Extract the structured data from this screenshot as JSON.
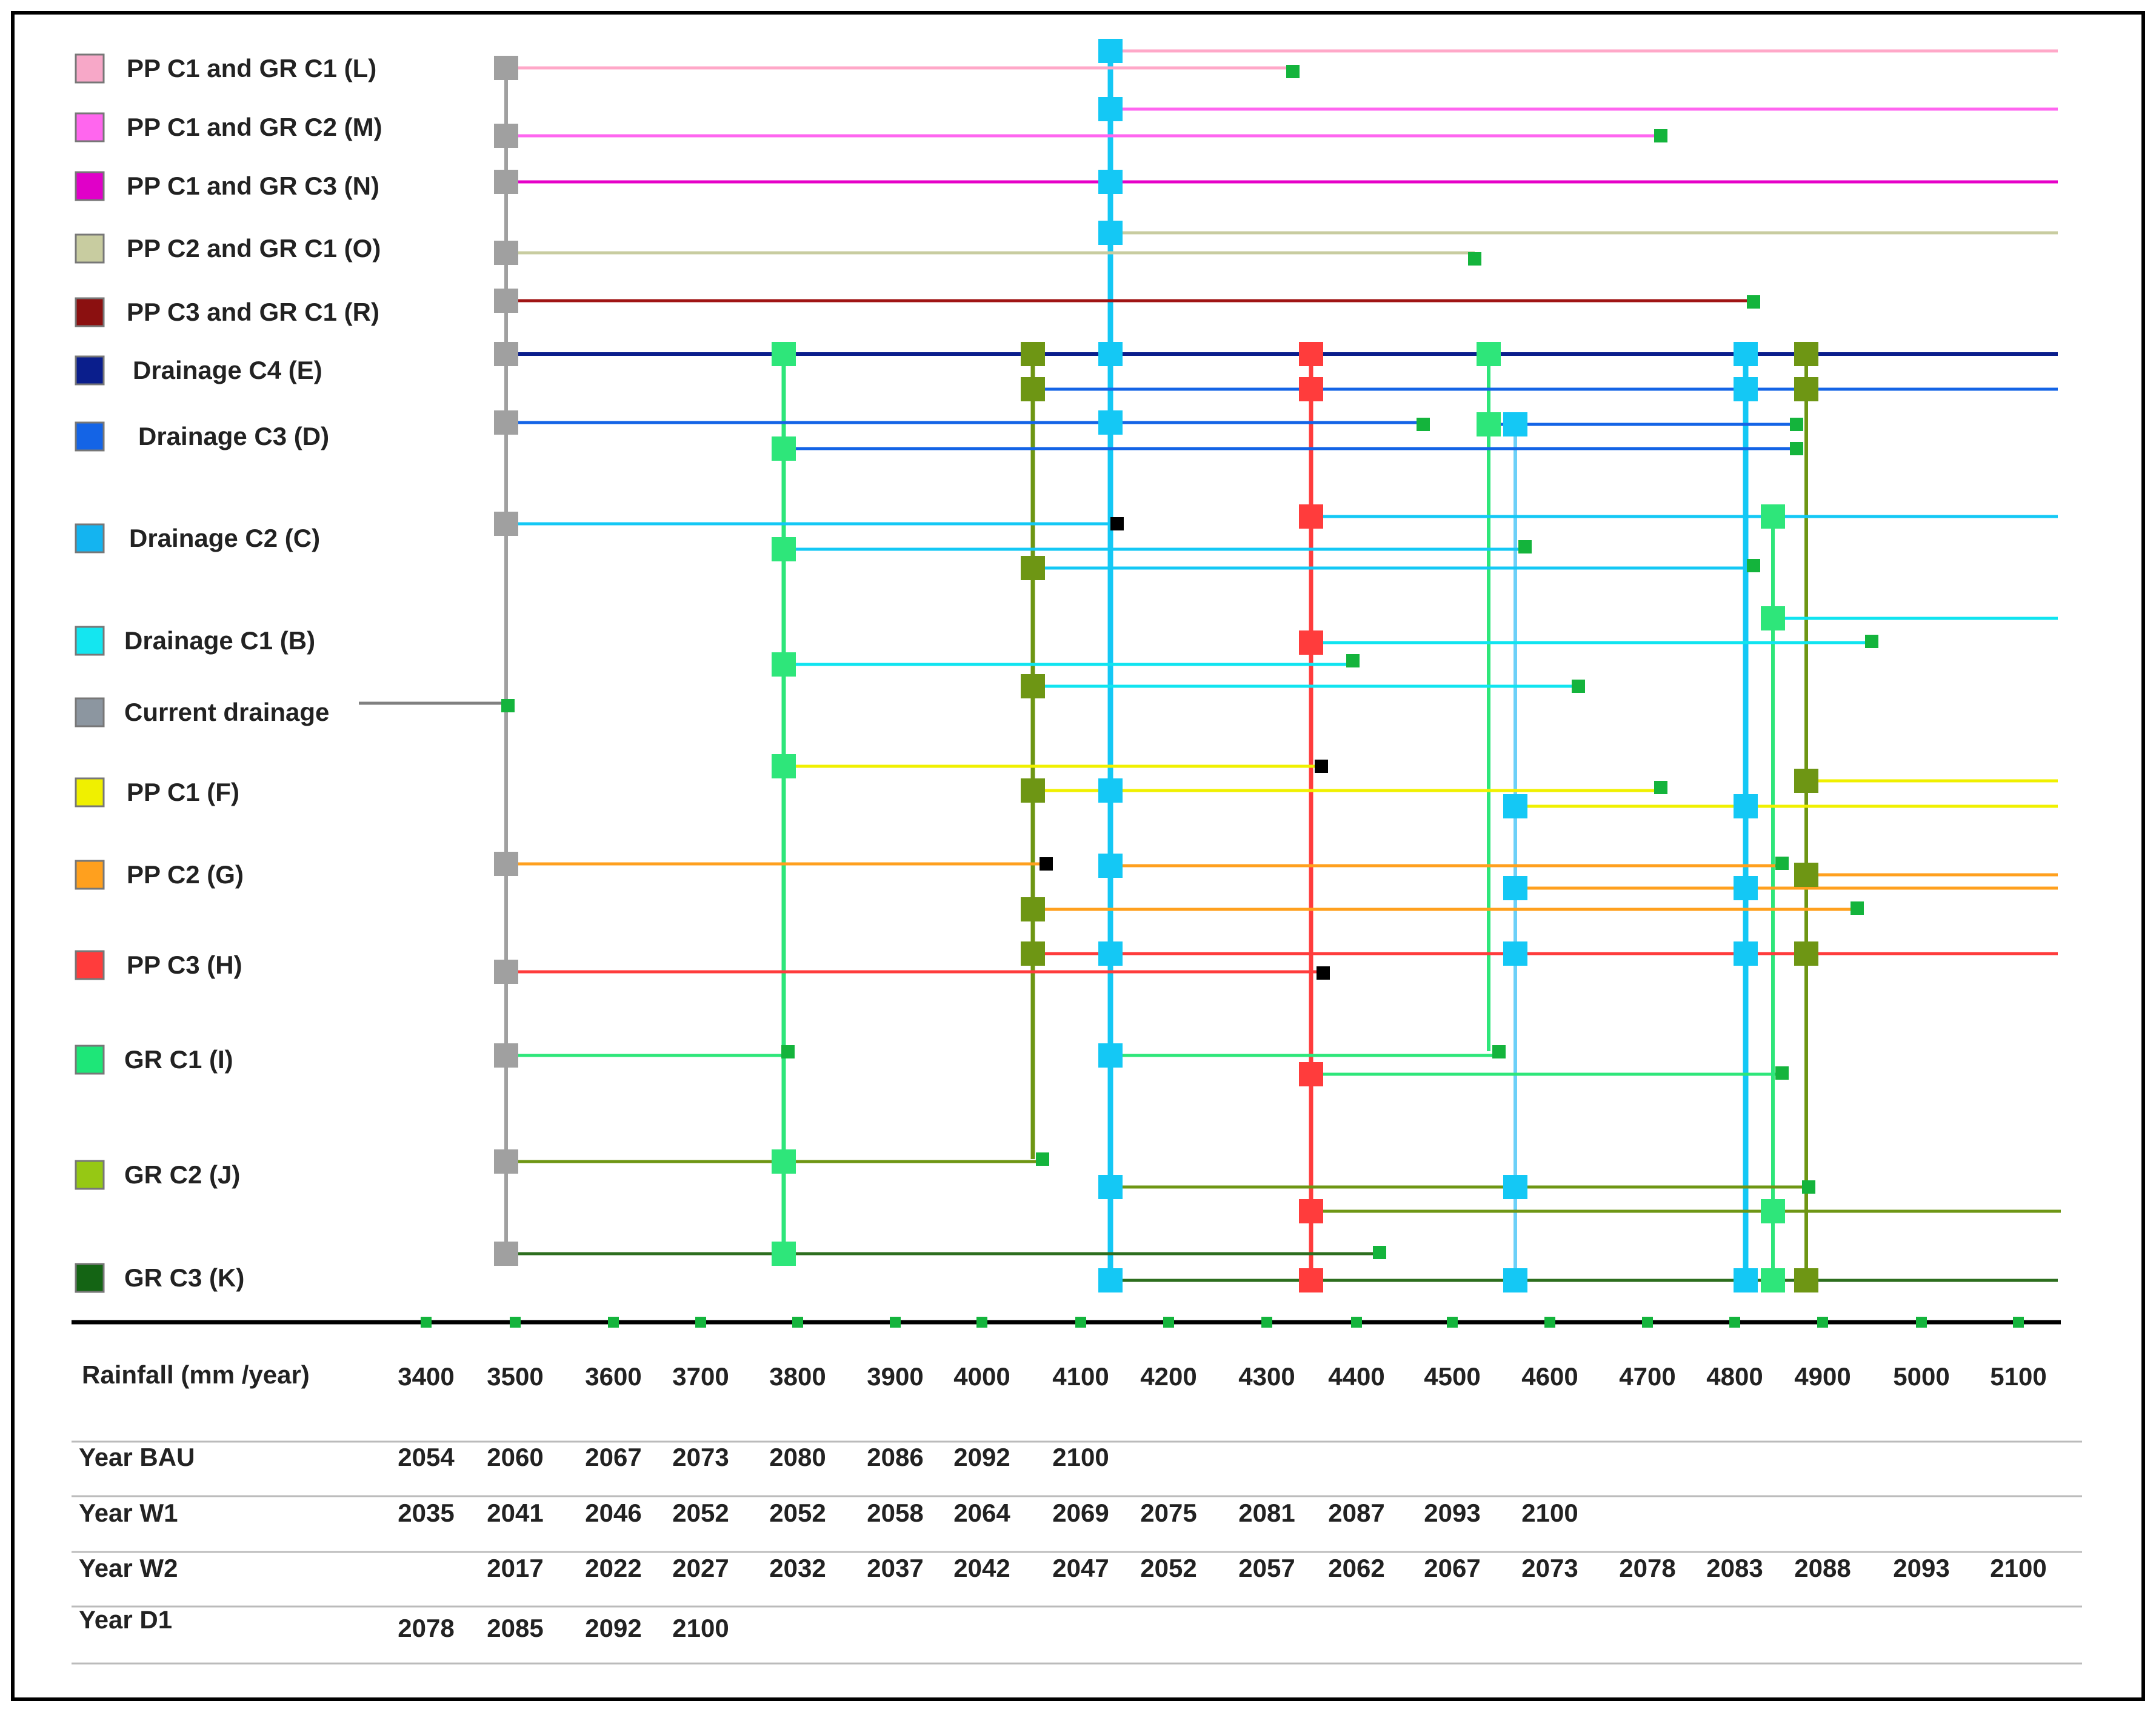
{
  "legend": [
    {
      "label": "PP C1 and GR C1 (L)",
      "color": "#f7a8c8"
    },
    {
      "label": "PP C1 and GR C2 (M)",
      "color": "#ff66ee"
    },
    {
      "label": "PP C1 and GR C3 (N)",
      "color": "#e000c8"
    },
    {
      "label": "PP C2 and GR C1 (O)",
      "color": "#c8cca0"
    },
    {
      "label": "PP C3 and GR C1 (R)",
      "color": "#8b1010"
    },
    {
      "label": "Drainage C4 (E)",
      "color": "#0a1e8c"
    },
    {
      "label": "Drainage C3 (D)",
      "color": "#1464e6"
    },
    {
      "label": "Drainage C2 (C)",
      "color": "#14b4f0"
    },
    {
      "label": "Drainage C1 (B)",
      "color": "#14e6f0"
    },
    {
      "label": "Current drainage",
      "color": "#8c96a0"
    },
    {
      "label": "PP C1 (F)",
      "color": "#f0f000"
    },
    {
      "label": "PP C2 (G)",
      "color": "#ffa01e"
    },
    {
      "label": "PP C3 (H)",
      "color": "#ff3c3c"
    },
    {
      "label": "GR C1 (I)",
      "color": "#1ee678"
    },
    {
      "label": "GR C2 (J)",
      "color": "#96c814"
    },
    {
      "label": "GR C3 (K)",
      "color": "#146414"
    }
  ],
  "axis": {
    "label": "Rainfall (mm /year)",
    "ticks": [
      "3400",
      "3500",
      "3600",
      "3700",
      "3800",
      "3900",
      "4000",
      "4100",
      "4200",
      "4300",
      "4400",
      "4500",
      "4600",
      "4700",
      "4800",
      "4900",
      "5000",
      "5100"
    ]
  },
  "table": [
    {
      "label": "Year BAU",
      "values": [
        "2054",
        "2060",
        "2067",
        "2073",
        "2080",
        "2086",
        "2092",
        "2100"
      ]
    },
    {
      "label": "Year W1",
      "values": [
        "2035",
        "2041",
        "2046",
        "2052",
        "2052",
        "2058",
        "2064",
        "2069",
        "2075",
        "2081",
        "2087",
        "2093",
        "2100"
      ]
    },
    {
      "label": "Year W2",
      "values": [
        "",
        "2017",
        "2022",
        "2027",
        "2032",
        "2037",
        "2042",
        "2047",
        "2052",
        "2057",
        "2062",
        "2067",
        "2073",
        "2078",
        "2083",
        "2088",
        "2093",
        "2100"
      ]
    },
    {
      "label": "Year D1",
      "values": [
        "2078",
        "2085",
        "2092",
        "2100"
      ]
    }
  ],
  "pathways": {
    "colors": {
      "current": "#a0a0a0",
      "grc1": "#2ee67a",
      "grc2": "#6e9614",
      "grc3": "#2d6e1e",
      "drainC1": "#10e4f0",
      "drainC2": "#14c8f5",
      "drainC3": "#1464e6",
      "drainC4": "#0a1e8c",
      "ppc1": "#f0f000",
      "ppc2": "#ffa01e",
      "ppc3": "#ff3c3c",
      "L": "#ffa8c8",
      "M": "#ff66f0",
      "N": "#e600c8",
      "O": "#c8cca0",
      "R": "#a01414",
      "tip_green": "#14b43c",
      "tip_black": "#000000"
    }
  }
}
